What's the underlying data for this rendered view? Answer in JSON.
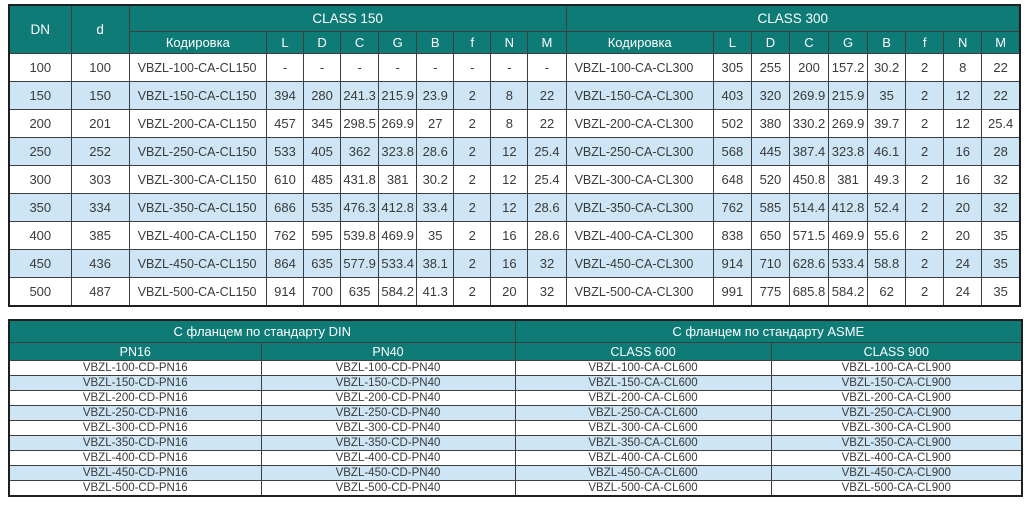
{
  "colors": {
    "header_teal": "#0E7B77",
    "row_blue": "#CDE5F4",
    "row_white": "#FFFFFF",
    "border_dark": "#3e3e3e",
    "header_text": "#FFFFFF",
    "body_text": "#3a3a3a"
  },
  "dim_table": {
    "header": {
      "dn": "DN",
      "d": "d",
      "class150": "CLASS 150",
      "class300": "CLASS 300"
    },
    "sub_headers": [
      "Кодировка",
      "L",
      "D",
      "C",
      "G",
      "B",
      "f",
      "N",
      "M"
    ],
    "rows": [
      [
        "100",
        "100",
        "VBZL-100-CA-CL150",
        "-",
        "-",
        "-",
        "-",
        "-",
        "-",
        "-",
        "-",
        "VBZL-100-CA-CL300",
        "305",
        "255",
        "200",
        "157.2",
        "30.2",
        "2",
        "8",
        "22"
      ],
      [
        "150",
        "150",
        "VBZL-150-CA-CL150",
        "394",
        "280",
        "241.3",
        "215.9",
        "23.9",
        "2",
        "8",
        "22",
        "VBZL-150-CA-CL300",
        "403",
        "320",
        "269.9",
        "215.9",
        "35",
        "2",
        "12",
        "22"
      ],
      [
        "200",
        "201",
        "VBZL-200-CA-CL150",
        "457",
        "345",
        "298.5",
        "269.9",
        "27",
        "2",
        "8",
        "22",
        "VBZL-200-CA-CL300",
        "502",
        "380",
        "330.2",
        "269.9",
        "39.7",
        "2",
        "12",
        "25.4"
      ],
      [
        "250",
        "252",
        "VBZL-250-CA-CL150",
        "533",
        "405",
        "362",
        "323.8",
        "28.6",
        "2",
        "12",
        "25.4",
        "VBZL-250-CA-CL300",
        "568",
        "445",
        "387.4",
        "323.8",
        "46.1",
        "2",
        "16",
        "28"
      ],
      [
        "300",
        "303",
        "VBZL-300-CA-CL150",
        "610",
        "485",
        "431.8",
        "381",
        "30.2",
        "2",
        "12",
        "25.4",
        "VBZL-300-CA-CL300",
        "648",
        "520",
        "450.8",
        "381",
        "49.3",
        "2",
        "16",
        "32"
      ],
      [
        "350",
        "334",
        "VBZL-350-CA-CL150",
        "686",
        "535",
        "476.3",
        "412.8",
        "33.4",
        "2",
        "12",
        "28.6",
        "VBZL-350-CA-CL300",
        "762",
        "585",
        "514.4",
        "412.8",
        "52.4",
        "2",
        "20",
        "32"
      ],
      [
        "400",
        "385",
        "VBZL-400-CA-CL150",
        "762",
        "595",
        "539.8",
        "469.9",
        "35",
        "2",
        "16",
        "28.6",
        "VBZL-400-CA-CL300",
        "838",
        "650",
        "571.5",
        "469.9",
        "55.6",
        "2",
        "20",
        "35"
      ],
      [
        "450",
        "436",
        "VBZL-450-CA-CL150",
        "864",
        "635",
        "577.9",
        "533.4",
        "38.1",
        "2",
        "16",
        "32",
        "VBZL-450-CA-CL300",
        "914",
        "710",
        "628.6",
        "533.4",
        "58.8",
        "2",
        "24",
        "35"
      ],
      [
        "500",
        "487",
        "VBZL-500-CA-CL150",
        "914",
        "700",
        "635",
        "584.2",
        "41.3",
        "2",
        "20",
        "32",
        "VBZL-500-CA-CL300",
        "991",
        "775",
        "685.8",
        "584.2",
        "62",
        "2",
        "24",
        "35"
      ]
    ]
  },
  "flange_table": {
    "group_headers": [
      "С фланцем по стандарту DIN",
      "С фланцем по стандарту ASME"
    ],
    "col_headers": [
      "PN16",
      "PN40",
      "CLASS 600",
      "CLASS 900"
    ],
    "rows": [
      [
        "VBZL-100-CD-PN16",
        "VBZL-100-CD-PN40",
        "VBZL-100-CA-CL600",
        "VBZL-100-CA-CL900"
      ],
      [
        "VBZL-150-CD-PN16",
        "VBZL-150-CD-PN40",
        "VBZL-150-CA-CL600",
        "VBZL-150-CA-CL900"
      ],
      [
        "VBZL-200-CD-PN16",
        "VBZL-200-CD-PN40",
        "VBZL-200-CA-CL600",
        "VBZL-200-CA-CL900"
      ],
      [
        "VBZL-250-CD-PN16",
        "VBZL-250-CD-PN40",
        "VBZL-250-CA-CL600",
        "VBZL-250-CA-CL900"
      ],
      [
        "VBZL-300-CD-PN16",
        "VBZL-300-CD-PN40",
        "VBZL-300-CA-CL600",
        "VBZL-300-CA-CL900"
      ],
      [
        "VBZL-350-CD-PN16",
        "VBZL-350-CD-PN40",
        "VBZL-350-CA-CL600",
        "VBZL-350-CA-CL900"
      ],
      [
        "VBZL-400-CD-PN16",
        "VBZL-400-CD-PN40",
        "VBZL-400-CA-CL600",
        "VBZL-400-CA-CL900"
      ],
      [
        "VBZL-450-CD-PN16",
        "VBZL-450-CD-PN40",
        "VBZL-450-CA-CL600",
        "VBZL-450-CA-CL900"
      ],
      [
        "VBZL-500-CD-PN16",
        "VBZL-500-CD-PN40",
        "VBZL-500-CA-CL600",
        "VBZL-500-CA-CL900"
      ]
    ]
  }
}
